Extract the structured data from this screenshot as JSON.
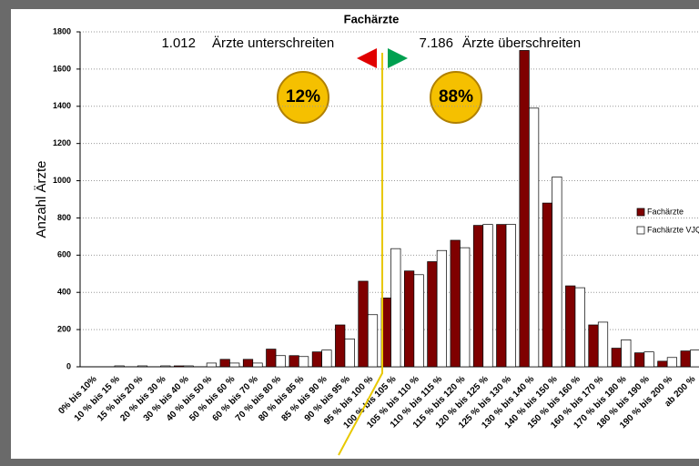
{
  "chart_data": {
    "type": "bar",
    "title": "Fachärzte",
    "y_label": "Anzahl Ärzte",
    "categories": [
      "0% bis 10%",
      "10 % bis 15 %",
      "15 % bis 20 %",
      "20 % bis 30 %",
      "30 % bis 40 %",
      "40 % bis 50 %",
      "50 % bis 60 %",
      "60 % bis 70 %",
      "70 % bis 80 %",
      "80 % bis 85 %",
      "85 % bis 90 %",
      "90 % bis 95 %",
      "95 % bis 100 %",
      "100 % bis 105 %",
      "105 % bis 110 %",
      "110 % bis 115 %",
      "115 % bis 120 %",
      "120 % bis 125 %",
      "125 % bis 130 %",
      "130 % bis 140 %",
      "140 % bis 150 %",
      "150 % bis 160 %",
      "160 % bis 170 %",
      "170 % bis 180 %",
      "180 % bis 190 %",
      "190 % bis 200 %",
      "ab 200 %"
    ],
    "series": [
      {
        "name": "Fachärzte",
        "color": "#7f0000",
        "values": [
          0,
          0,
          0,
          0,
          5,
          0,
          40,
          40,
          95,
          60,
          80,
          225,
          460,
          370,
          515,
          565,
          680,
          760,
          765,
          1700,
          880,
          435,
          225,
          100,
          75,
          30,
          85
        ]
      },
      {
        "name": "Fachärzte VJQ",
        "color": "#ffffff",
        "values": [
          0,
          5,
          5,
          5,
          5,
          20,
          20,
          20,
          60,
          55,
          90,
          150,
          280,
          635,
          495,
          625,
          640,
          765,
          765,
          1390,
          1020,
          425,
          240,
          145,
          80,
          50,
          90
        ]
      }
    ],
    "ylim": [
      0,
      1800
    ],
    "yticks": [
      0,
      200,
      400,
      600,
      800,
      1000,
      1200,
      1400,
      1600,
      1800
    ],
    "grid": true,
    "annotations": {
      "below_count": "1.012",
      "below_text": "Ärzte unterschreiten",
      "above_count": "7.186",
      "above_text": "Ärzte überschreiten",
      "below_share": "12%",
      "above_share": "88%"
    }
  }
}
